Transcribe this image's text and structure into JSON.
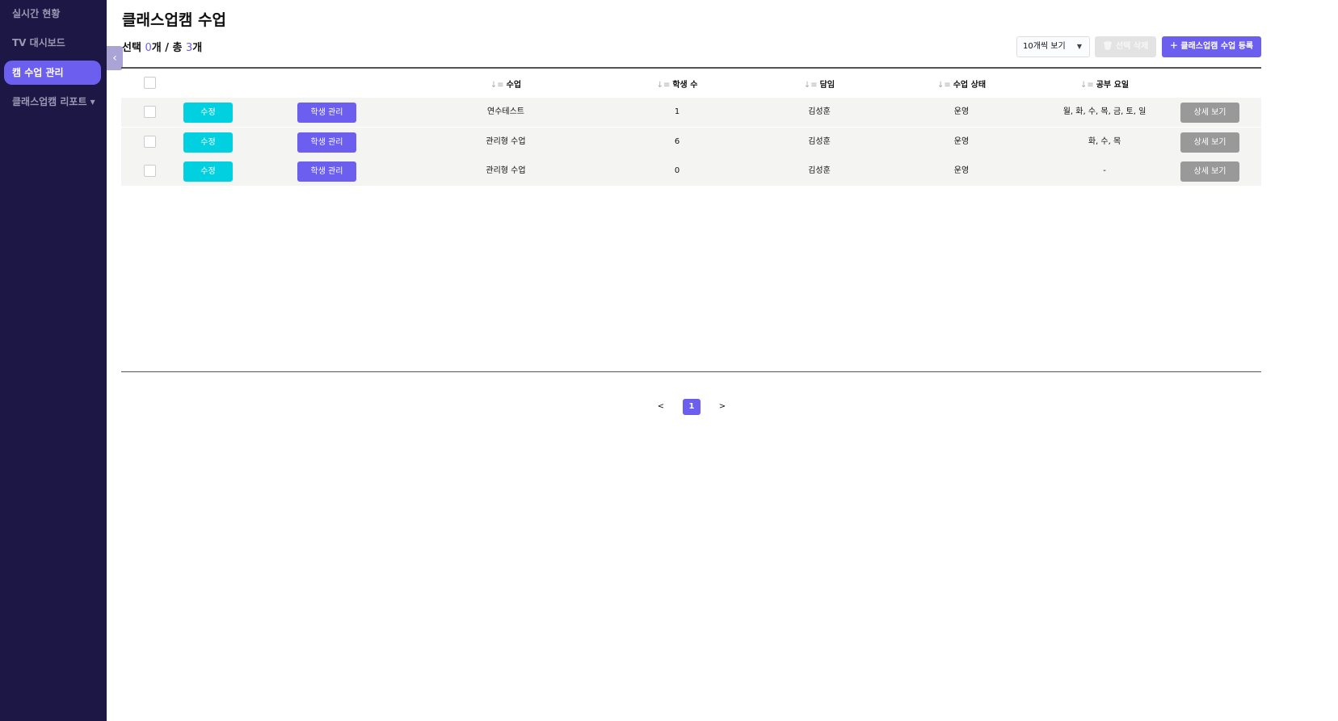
{
  "sidebar": {
    "items": [
      {
        "label": "실시간 현황"
      },
      {
        "label": "TV 대시보드"
      },
      {
        "label": "캠 수업 관리",
        "active": true
      },
      {
        "label": "클래스업캠 리포트 ▾"
      }
    ]
  },
  "page": {
    "title": "클래스업캠 수업",
    "selected_label": "선택 ",
    "selected": "0",
    "unit1": "개 / 총 ",
    "total": "3",
    "unit2": "개"
  },
  "toolbar": {
    "page_size": "10개씩 보기",
    "delete": "🗑 선택 삭제",
    "add": "＋ 클래스업캠 수업 등록"
  },
  "table": {
    "headers": [
      "수업",
      "학생 수",
      "담임",
      "수업 상태",
      "공부 요일"
    ],
    "sort_icon": "↓≡",
    "rows": [
      {
        "edit": "수정",
        "manage": "학생 관리",
        "class": "연수테스트",
        "students": "1",
        "teacher": "김성훈",
        "status": "운영",
        "days": "월, 화, 수, 목, 금, 토, 일",
        "detail": "상세 보기"
      },
      {
        "edit": "수정",
        "manage": "학생 관리",
        "class": "관리형 수업",
        "students": "6",
        "teacher": "김성훈",
        "status": "운영",
        "days": "화, 수, 목",
        "detail": "상세 보기"
      },
      {
        "edit": "수정",
        "manage": "학생 관리",
        "class": "관리형 수업",
        "students": "0",
        "teacher": "김성훈",
        "status": "운영",
        "days": "-",
        "detail": "상세 보기"
      }
    ]
  },
  "pagination": {
    "prev": "<",
    "current": "1",
    "next": ">"
  },
  "colors": {
    "sidebar": "#1c1745",
    "accent": "#6c5ff0",
    "edit": "#00d0e0"
  }
}
